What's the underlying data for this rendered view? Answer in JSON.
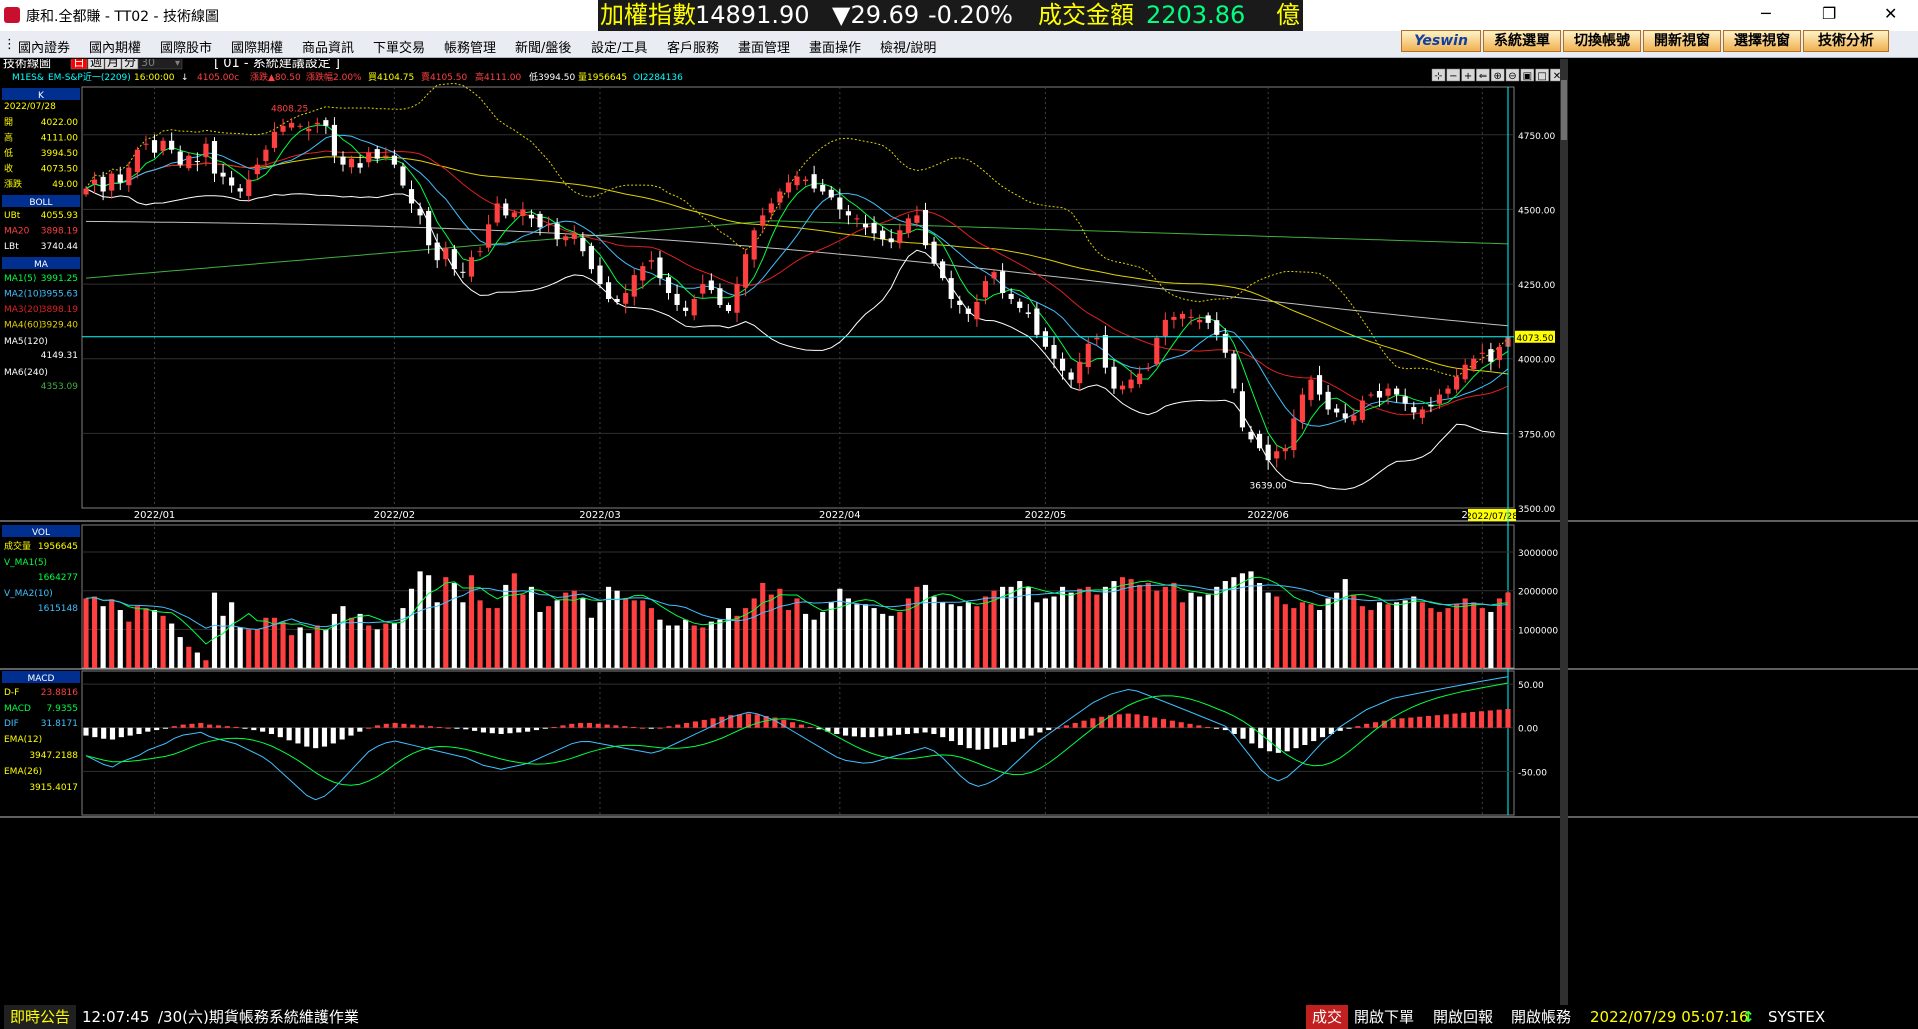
{
  "window": {
    "title": "康和.全都賺 - TT02 - 技術線圖",
    "controls": [
      "─",
      "❐",
      "✕"
    ]
  },
  "ticker": {
    "name": "加權指數",
    "value": "14891.90",
    "change": "▼29.69",
    "pct": "-0.20%",
    "amount_label": "成交金額",
    "amount": "2203.86",
    "unit": "億"
  },
  "menu": [
    "國內證券",
    "國內期權",
    "國際股市",
    "國際期權",
    "商品資訊",
    "下單交易",
    "帳務管理",
    "新聞/盤後",
    "設定/工具",
    "客戶服務",
    "畫面管理",
    "畫面操作",
    "檢視/說明"
  ],
  "quick_buttons": [
    "Yeswin",
    "系統選單",
    "切換帳號",
    "開新視窗",
    "選擇視窗",
    "技術分析"
  ],
  "chart_header": {
    "panel_title": "技術線圖",
    "periods": [
      "日",
      "週",
      "月",
      "分"
    ],
    "active_period": "日",
    "minute_value": "30",
    "preset": "[ 01 - 系統建議設定 ]",
    "symbol": "M1ES&",
    "symbol_name": "EM-S&P近一(2209)",
    "time": "16:00:00",
    "arrow": "↓",
    "close": "4105.00c",
    "change": "漲跌▲80.50",
    "change_pct": "漲跌幅2.00%",
    "buy": "買4104.75",
    "sell": "賣4105.50",
    "high": "高4111.00",
    "low": "低3994.50",
    "volume": "量1956645",
    "oi": "OI2284136",
    "toolbar_icons": [
      "crosshair-icon",
      "minus-icon",
      "plus-icon",
      "arrow-left-icon",
      "zoom-in-icon",
      "zoom-out-icon",
      "save-icon",
      "window-icon",
      "close-icon"
    ]
  },
  "left_panel": {
    "k": {
      "label": "K",
      "date": "2022/07/28",
      "rows": [
        {
          "k": "開",
          "v": "4022.00"
        },
        {
          "k": "高",
          "v": "4111.00"
        },
        {
          "k": "低",
          "v": "3994.50"
        },
        {
          "k": "收",
          "v": "4073.50"
        },
        {
          "k": "漲跌",
          "v": "49.00"
        }
      ]
    },
    "boll": {
      "label": "BOLL",
      "rows": [
        {
          "k": "UBt",
          "v": "4055.93"
        },
        {
          "k": "MA20",
          "v": "3898.19"
        },
        {
          "k": "LBt",
          "v": "3740.44"
        }
      ]
    },
    "ma": {
      "label": "MA",
      "rows": [
        {
          "k": "MA1(5)",
          "v": "3991.25"
        },
        {
          "k": "MA2(10)",
          "v": "3955.63"
        },
        {
          "k": "MA3(20)",
          "v": "3898.19"
        },
        {
          "k": "MA4(60)",
          "v": "3929.40"
        },
        {
          "k": "MA5(120)",
          "v": "4149.31"
        },
        {
          "k": "MA6(240)",
          "v": "4353.09"
        }
      ]
    },
    "vol": {
      "label": "VOL",
      "rows": [
        {
          "k": "成交量",
          "v": "1956645"
        },
        {
          "k": "V_MA1(5)",
          "v": "1664277"
        },
        {
          "k": "V_MA2(10)",
          "v": "1615148"
        }
      ]
    },
    "macd": {
      "label": "MACD",
      "rows": [
        {
          "k": "D-F",
          "v": "23.8816"
        },
        {
          "k": "MACD",
          "v": "7.9355"
        },
        {
          "k": "DIF",
          "v": "31.8171"
        },
        {
          "k": "EMA(12)",
          "v": "3947.2188"
        },
        {
          "k": "EMA(26)",
          "v": "3915.4017"
        }
      ]
    }
  },
  "chart_data": [
    {
      "type": "candlestick",
      "title": "K",
      "yaxis_ticks": [
        "4750.00",
        "4500.00",
        "4250.00",
        "4000.00",
        "3750.00",
        "3500.00"
      ],
      "ylim": [
        3500,
        4910
      ],
      "x_ticks": [
        "2022/01",
        "2022/02",
        "2022/03",
        "2022/04",
        "2022/05",
        "2022/06",
        "2022/07"
      ],
      "current_date": "2022/07/28",
      "last_price_label": "4073.50",
      "annotations": [
        {
          "text": "4808.25"
        },
        {
          "text": "3639.00"
        }
      ],
      "closes": [
        4570,
        4600,
        4560,
        4620,
        4590,
        4640,
        4700,
        4720,
        4690,
        4730,
        4700,
        4650,
        4680,
        4660,
        4720,
        4620,
        4610,
        4580,
        4560,
        4600,
        4650,
        4700,
        4760,
        4780,
        4790,
        4780,
        4770,
        4790,
        4780,
        4680,
        4650,
        4670,
        4640,
        4690,
        4670,
        4680,
        4650,
        4580,
        4520,
        4480,
        4380,
        4330,
        4370,
        4300,
        4290,
        4340,
        4360,
        4450,
        4520,
        4480,
        4490,
        4500,
        4470,
        4440,
        4450,
        4400,
        4410,
        4420,
        4360,
        4300,
        4250,
        4200,
        4190,
        4220,
        4280,
        4310,
        4330,
        4270,
        4220,
        4180,
        4160,
        4200,
        4250,
        4230,
        4180,
        4160,
        4250,
        4350,
        4430,
        4480,
        4520,
        4560,
        4590,
        4610,
        4600,
        4570,
        4560,
        4540,
        4500,
        4480,
        4470,
        4440,
        4420,
        4400,
        4390,
        4430,
        4470,
        4480,
        4380,
        4320,
        4270,
        4200,
        4180,
        4150,
        4190,
        4260,
        4290,
        4220,
        4200,
        4170,
        4150,
        4080,
        4040,
        4000,
        3960,
        3930,
        3990,
        4050,
        4070,
        3970,
        3900,
        3910,
        3930,
        3950,
        3970,
        4070,
        4130,
        4140,
        4150,
        4140,
        4130,
        4120,
        4080,
        4020,
        3900,
        3770,
        3730,
        3700,
        3660,
        3690,
        3700,
        3800,
        3880,
        3930,
        3880,
        3830,
        3820,
        3800,
        3810,
        3860,
        3880,
        3870,
        3900,
        3880,
        3850,
        3820,
        3830,
        3840,
        3880,
        3900,
        3940,
        3980,
        4000,
        4020,
        3990,
        4040,
        4073.5
      ]
    },
    {
      "type": "bar",
      "title": "VOL",
      "yaxis_ticks": [
        "3000000",
        "2000000",
        "1000000"
      ],
      "ylim": [
        0,
        3700000
      ],
      "series": [
        {
          "name": "成交量",
          "values": [
            1800000,
            1850000,
            1600000,
            1780000,
            1500000,
            1200000,
            1600000,
            1550000,
            1500000,
            1350000,
            1150000,
            800000,
            550000,
            400000,
            200000,
            1950000,
            1350000,
            1700000,
            1050000,
            1000000,
            1000000,
            1300000,
            1300000,
            1200000,
            850000,
            1050000,
            900000,
            1100000,
            1000000,
            1400000,
            1600000,
            1300000,
            1400000,
            1100000,
            1000000,
            1150000,
            1150000,
            1550000,
            2050000,
            2500000,
            2400000,
            1700000,
            2350000,
            2200000,
            1700000,
            2400000,
            1750000,
            1550000,
            1550000,
            2150000,
            2450000,
            1900000,
            2100000,
            1450000,
            1600000,
            1750000,
            1950000,
            2000000,
            1800000,
            1300000,
            1700000,
            2100000,
            2000000,
            1800000,
            1750000,
            1750000,
            1550000,
            1250000,
            1100000,
            1100000,
            1250000,
            1100000,
            1050000,
            1200000,
            1250000,
            1550000,
            1350000,
            1550000,
            1800000,
            2200000,
            1900000,
            2050000,
            1500000,
            1800000,
            1400000,
            1250000,
            1450000,
            1700000,
            2050000,
            1800000,
            1650000,
            1650000,
            1550000,
            1400000,
            1350000,
            1450000,
            1800000,
            2100000,
            2150000,
            1850000,
            1700000,
            1650000,
            1600000,
            1700000,
            1600000,
            1850000,
            2000000,
            2100000,
            2100000,
            2250000,
            2100000,
            1700000,
            1800000,
            1850000,
            2100000,
            1950000,
            2050000,
            2100000,
            1900000,
            2100000,
            2250000,
            2350000,
            2300000,
            2150000,
            2200000,
            2000000,
            2100000,
            2200000,
            1700000,
            1950000,
            1850000,
            1900000,
            2100000,
            2250000,
            2350000,
            2450000,
            2500000,
            2200000,
            1950000,
            1850000,
            1650000,
            1550000,
            1700000,
            1650000,
            1500000,
            1800000,
            1950000,
            2300000,
            1900000,
            1600000,
            1500000,
            1700000,
            1650000,
            1700000,
            1750000,
            1850000,
            1700000,
            1550000,
            1450000,
            1550000,
            1650000,
            1800000,
            1700000,
            1550000,
            1450000,
            1800000,
            1956645
          ]
        }
      ]
    },
    {
      "type": "bar",
      "title": "MACD",
      "yaxis_ticks": [
        "50.00",
        "0.00",
        "-50.00"
      ],
      "ylim": [
        -100,
        65
      ],
      "series": [
        {
          "name": "D-F",
          "values": [
            -10,
            -12,
            -14,
            -15,
            -12,
            -10,
            -8,
            -5,
            -3,
            -1,
            2,
            4,
            5,
            6,
            4,
            3,
            2,
            1,
            -1,
            -3,
            -5,
            -8,
            -12,
            -16,
            -20,
            -24,
            -26,
            -24,
            -20,
            -15,
            -10,
            -5,
            0,
            3,
            5,
            6,
            5,
            4,
            3,
            2,
            1,
            0,
            -1,
            -2,
            -4,
            -6,
            -7,
            -8,
            -7,
            -6,
            -5,
            -3,
            -1,
            1,
            3,
            5,
            6,
            6,
            5,
            4,
            3,
            2,
            1,
            0,
            -1,
            0,
            2,
            4,
            6,
            8,
            10,
            12,
            14,
            16,
            17,
            18,
            17,
            15,
            13,
            10,
            7,
            4,
            1,
            -2,
            -5,
            -8,
            -10,
            -11,
            -12,
            -12,
            -11,
            -10,
            -9,
            -8,
            -7,
            -6,
            -8,
            -12,
            -17,
            -22,
            -26,
            -28,
            -27,
            -25,
            -22,
            -18,
            -14,
            -10,
            -6,
            -3,
            0,
            3,
            6,
            9,
            12,
            14,
            16,
            17,
            18,
            17,
            15,
            13,
            11,
            9,
            7,
            5,
            3,
            1,
            -1,
            -3,
            -8,
            -14,
            -20,
            -26,
            -30,
            -32,
            -30,
            -26,
            -22,
            -17,
            -12,
            -8,
            -4,
            -1,
            2,
            5,
            7,
            9,
            11,
            12,
            13,
            14,
            15,
            16,
            17,
            18,
            19,
            20,
            21,
            22,
            23,
            23.88
          ]
        }
      ]
    }
  ],
  "status": {
    "notice_label": "即時公告",
    "notice_time": "12:07:45",
    "notice_text": "/30(六)期貨帳務系統維護作業",
    "buttons": [
      "成交",
      "開啟下單",
      "開啟回報",
      "開啟帳務"
    ],
    "datetime": "2022/07/29 05:07:16",
    "brand": "SYSTEX"
  },
  "colors": {
    "up": "#ff4040",
    "down": "#ffffff",
    "ma5": "#00ff40",
    "ma10": "#40c0ff",
    "ma20": "#e02020",
    "ma60": "#e0d000",
    "ma120": "#c0c0c0",
    "ma240": "#40b040",
    "boll_band": "#ffffff",
    "boll_ub": "#e0d000",
    "grid": "#808080",
    "accent": "#ffff00",
    "cyan": "#00ffff"
  }
}
